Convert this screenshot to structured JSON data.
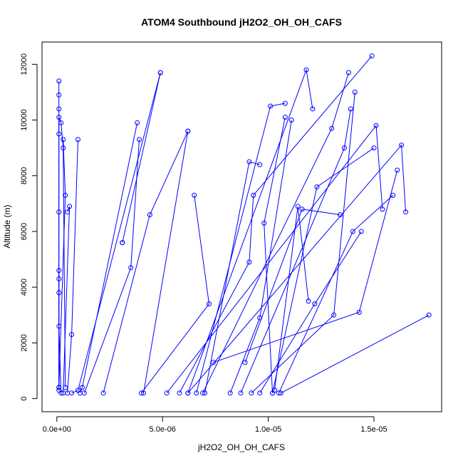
{
  "chart_data": {
    "type": "line",
    "title": "ATOM4 Southbound jH2O2_OH_OH_CAFS",
    "xlabel": "jH2O2_OH_OH_CAFS",
    "ylabel": "Altitude (m)",
    "xlim": [
      -7e-07,
      1.82e-05
    ],
    "ylim": [
      -470,
      12800
    ],
    "x_ticks": [
      {
        "value": 0,
        "label": "0.0e+00"
      },
      {
        "value": 5e-06,
        "label": "5.0e-06"
      },
      {
        "value": 1e-05,
        "label": "1.0e-05"
      },
      {
        "value": 1.5e-05,
        "label": "1.5e-05"
      }
    ],
    "y_ticks": [
      {
        "value": 0,
        "label": "0"
      },
      {
        "value": 2000,
        "label": "2000"
      },
      {
        "value": 4000,
        "label": "4000"
      },
      {
        "value": 6000,
        "label": "6000"
      },
      {
        "value": 8000,
        "label": "8000"
      },
      {
        "value": 10000,
        "label": "10000"
      },
      {
        "value": 12000,
        "label": "12000"
      }
    ],
    "color": "#0000ff",
    "marker": "open-circle",
    "grid": false,
    "series": [
      {
        "x": [
          1e-07,
          1e-07,
          1e-07,
          1e-07,
          1e-07,
          2e-07,
          3e-07,
          4e-07
        ],
        "y": [
          400,
          3800,
          6700,
          9500,
          10100,
          9900,
          9000,
          400
        ]
      },
      {
        "x": [
          1e-07,
          1e-07,
          1e-07,
          1e-07
        ],
        "y": [
          11400,
          10900,
          10400,
          300
        ]
      },
      {
        "x": [
          1e-07,
          1e-07,
          1e-07,
          2e-07
        ],
        "y": [
          4600,
          4300,
          2600,
          200
        ]
      },
      {
        "x": [
          3e-07,
          4e-07,
          1e-07
        ],
        "y": [
          9300,
          7300,
          400
        ]
      },
      {
        "x": [
          5e-07,
          6e-07,
          3e-07
        ],
        "y": [
          6700,
          6900,
          200
        ]
      },
      {
        "x": [
          1e-06,
          7e-07,
          5e-07
        ],
        "y": [
          9300,
          2300,
          200
        ]
      },
      {
        "x": [
          4.9e-06,
          3.1e-06,
          3.1e-06
        ],
        "y": [
          11700,
          5600,
          5600
        ]
      },
      {
        "x": [
          4.9e-06,
          1e-06,
          7e-07
        ],
        "y": [
          11700,
          300,
          200
        ]
      },
      {
        "x": [
          3.8e-06,
          1.2e-06,
          1.1e-06
        ],
        "y": [
          9900,
          400,
          200
        ]
      },
      {
        "x": [
          3.9e-06,
          3.5e-06,
          1.3e-06
        ],
        "y": [
          9300,
          4700,
          200
        ]
      },
      {
        "x": [
          6.2e-06,
          4.4e-06,
          2.2e-06
        ],
        "y": [
          9600,
          6600,
          200
        ]
      },
      {
        "x": [
          6.2e-06,
          4.1e-06
        ],
        "y": [
          9600,
          200
        ]
      },
      {
        "x": [
          6.5e-06,
          7.2e-06,
          4e-06
        ],
        "y": [
          7300,
          3400,
          200
        ]
      },
      {
        "x": [
          1.49e-05,
          9.3e-06,
          9.1e-06,
          5.8e-06
        ],
        "y": [
          12300,
          7300,
          4900,
          200
        ]
      },
      {
        "x": [
          1.38e-05,
          1.3e-05,
          6.9e-06
        ],
        "y": [
          11700,
          9700,
          200
        ]
      },
      {
        "x": [
          1.21e-05,
          1.18e-05,
          6.2e-06
        ],
        "y": [
          10400,
          11800,
          200
        ]
      },
      {
        "x": [
          1.08e-05,
          1.01e-05,
          6.6e-06
        ],
        "y": [
          10600,
          10500,
          200
        ]
      },
      {
        "x": [
          1.41e-05,
          1.31e-05,
          9.2e-06
        ],
        "y": [
          11000,
          3000,
          200
        ]
      },
      {
        "x": [
          9.6e-06,
          9.1e-06,
          7e-06
        ],
        "y": [
          8400,
          8500,
          200
        ]
      },
      {
        "x": [
          1.11e-05,
          9.6e-06,
          8.2e-06
        ],
        "y": [
          10000,
          2900,
          200
        ]
      },
      {
        "x": [
          1.08e-05,
          9.8e-06,
          1.02e-05
        ],
        "y": [
          10100,
          6300,
          200
        ]
      },
      {
        "x": [
          1.39e-05,
          1.36e-05,
          8.7e-06
        ],
        "y": [
          10400,
          9000,
          200
        ]
      },
      {
        "x": [
          1.59e-05,
          1.4e-05,
          1.05e-05
        ],
        "y": [
          7300,
          6000,
          200
        ]
      },
      {
        "x": [
          1.65e-05,
          1.63e-05,
          6.2e-06
        ],
        "y": [
          6700,
          9100,
          200
        ]
      },
      {
        "x": [
          1.76e-05,
          1.06e-05
        ],
        "y": [
          3000,
          200
        ]
      },
      {
        "x": [
          1.54e-05,
          1.51e-05,
          5.2e-06
        ],
        "y": [
          6800,
          9800,
          200
        ]
      },
      {
        "x": [
          1.61e-05,
          1.43e-05,
          7.4e-06
        ],
        "y": [
          8200,
          3100,
          1300
        ]
      },
      {
        "x": [
          1.5e-05,
          1.23e-05,
          1.02e-05
        ],
        "y": [
          9000,
          7600,
          200
        ]
      },
      {
        "x": [
          1.34e-05,
          1.16e-05,
          8.9e-06
        ],
        "y": [
          6600,
          6800,
          1300
        ]
      },
      {
        "x": [
          1.44e-05,
          1.22e-05,
          9.6e-06
        ],
        "y": [
          6000,
          3400,
          200
        ]
      },
      {
        "x": [
          1.19e-05,
          1.14e-05,
          1.03e-05
        ],
        "y": [
          3500,
          6900,
          300
        ]
      }
    ]
  }
}
